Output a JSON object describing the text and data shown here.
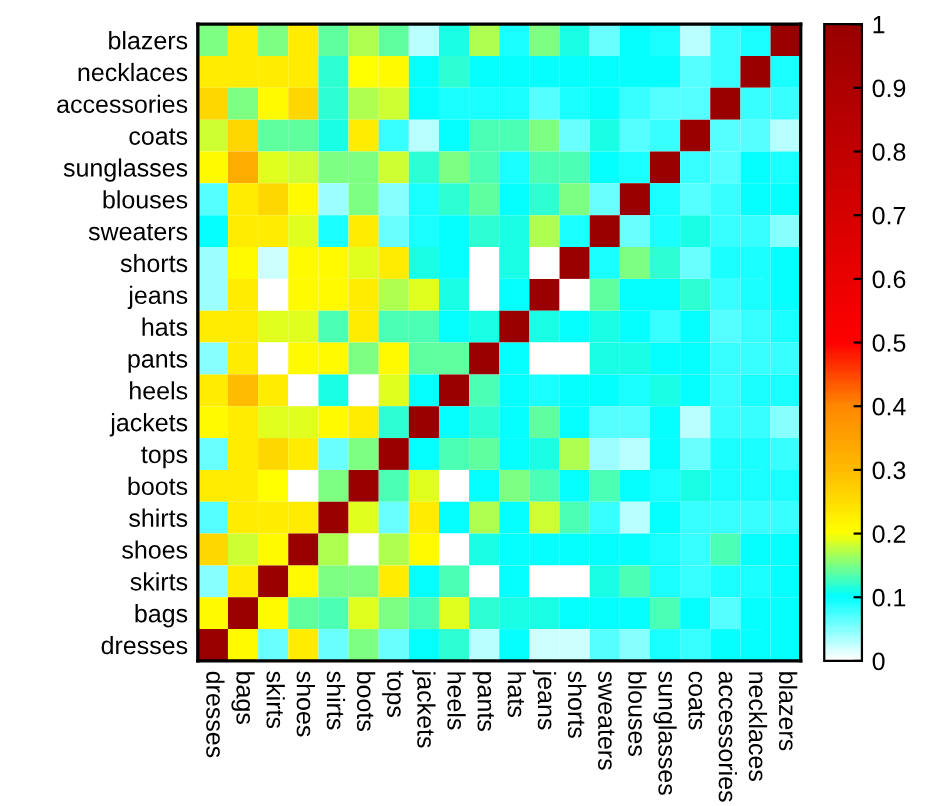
{
  "chart_data": {
    "type": "heatmap",
    "categories": [
      "dresses",
      "bags",
      "skirts",
      "shoes",
      "shirts",
      "boots",
      "tops",
      "jackets",
      "heels",
      "pants",
      "hats",
      "jeans",
      "shorts",
      "sweaters",
      "blouses",
      "sunglasses",
      "coats",
      "accessories",
      "necklaces",
      "blazers"
    ],
    "y_categories": [
      "blazers",
      "necklaces",
      "accessories",
      "coats",
      "sunglasses",
      "blouses",
      "sweaters",
      "shorts",
      "jeans",
      "hats",
      "pants",
      "heels",
      "jackets",
      "tops",
      "boots",
      "shirts",
      "shoes",
      "skirts",
      "bags",
      "dresses"
    ],
    "cells": [
      [
        0.15,
        0.23,
        0.15,
        0.23,
        0.14,
        0.17,
        0.14,
        0.03,
        0.11,
        0.17,
        0.09,
        0.15,
        0.11,
        0.06,
        0.1,
        0.09,
        0.03,
        0.08,
        0.09,
        1
      ],
      [
        0.23,
        0.23,
        0.23,
        0.23,
        0.12,
        0.2,
        0.21,
        0.1,
        0.12,
        0.1,
        0.1,
        0.1,
        0.1,
        0.1,
        0.1,
        0.1,
        0.07,
        0.08,
        1,
        0.09
      ],
      [
        0.26,
        0.15,
        0.21,
        0.26,
        0.12,
        0.17,
        0.18,
        0.1,
        0.09,
        0.09,
        0.09,
        0.07,
        0.09,
        0.1,
        0.08,
        0.07,
        0.07,
        1,
        0.08,
        0.08
      ],
      [
        0.18,
        0.26,
        0.14,
        0.14,
        0.11,
        0.23,
        0.08,
        0.03,
        0.1,
        0.13,
        0.13,
        0.15,
        0.06,
        0.11,
        0.07,
        0.08,
        1,
        0.07,
        0.07,
        0.03
      ],
      [
        0.21,
        0.33,
        0.19,
        0.18,
        0.15,
        0.15,
        0.18,
        0.12,
        0.15,
        0.13,
        0.09,
        0.13,
        0.13,
        0.1,
        0.09,
        1,
        0.08,
        0.07,
        0.1,
        0.09
      ],
      [
        0.07,
        0.23,
        0.26,
        0.21,
        0.04,
        0.15,
        0.05,
        0.09,
        0.12,
        0.14,
        0.1,
        0.12,
        0.15,
        0.06,
        1,
        0.09,
        0.07,
        0.08,
        0.1,
        0.1
      ],
      [
        0.1,
        0.23,
        0.23,
        0.19,
        0.09,
        0.23,
        0.06,
        0.09,
        0.1,
        0.12,
        0.11,
        0.17,
        0.09,
        1,
        0.06,
        0.09,
        0.11,
        0.08,
        0.08,
        0.05
      ],
      [
        0.04,
        0.21,
        0.02,
        0.21,
        0.21,
        0.19,
        0.23,
        0.11,
        0.1,
        0,
        0.11,
        0,
        1,
        0.09,
        0.15,
        0.12,
        0.06,
        0.09,
        0.09,
        0.1
      ],
      [
        0.04,
        0.23,
        0,
        0.21,
        0.21,
        0.23,
        0.17,
        0.19,
        0.11,
        0,
        0.1,
        1,
        0,
        0.14,
        0.1,
        0.1,
        0.12,
        0.08,
        0.09,
        0.1
      ],
      [
        0.23,
        0.23,
        0.19,
        0.19,
        0.13,
        0.23,
        0.13,
        0.13,
        0.1,
        0.11,
        1,
        0.11,
        0.1,
        0.11,
        0.1,
        0.08,
        0.1,
        0.07,
        0.08,
        0.09
      ],
      [
        0.05,
        0.23,
        0,
        0.21,
        0.21,
        0.15,
        0.21,
        0.14,
        0.14,
        1,
        0.1,
        0,
        0,
        0.11,
        0.11,
        0.1,
        0.1,
        0.08,
        0.08,
        0.08
      ],
      [
        0.23,
        0.3,
        0.23,
        0,
        0.11,
        0,
        0.19,
        0.1,
        1,
        0.13,
        0.1,
        0.09,
        0.1,
        0.1,
        0.09,
        0.11,
        0.1,
        0.08,
        0.09,
        0.09
      ],
      [
        0.21,
        0.23,
        0.19,
        0.19,
        0.21,
        0.23,
        0.12,
        1,
        0.1,
        0.12,
        0.1,
        0.14,
        0.1,
        0.07,
        0.07,
        0.1,
        0.03,
        0.08,
        0.08,
        0.05
      ],
      [
        0.06,
        0.23,
        0.26,
        0.23,
        0.06,
        0.15,
        1,
        0.1,
        0.13,
        0.14,
        0.1,
        0.11,
        0.17,
        0.04,
        0.03,
        0.1,
        0.06,
        0.09,
        0.09,
        0.08
      ],
      [
        0.23,
        0.23,
        0.2,
        0,
        0.15,
        1,
        0.13,
        0.19,
        0,
        0.1,
        0.15,
        0.13,
        0.1,
        0.13,
        0.1,
        0.09,
        0.11,
        0.09,
        0.09,
        0.09
      ],
      [
        0.07,
        0.23,
        0.23,
        0.23,
        1,
        0.19,
        0.06,
        0.23,
        0.1,
        0.17,
        0.1,
        0.18,
        0.13,
        0.08,
        0.03,
        0.1,
        0.08,
        0.08,
        0.08,
        0.08
      ],
      [
        0.26,
        0.18,
        0.21,
        1,
        0.17,
        0,
        0.17,
        0.21,
        0,
        0.11,
        0.1,
        0.1,
        0.1,
        0.1,
        0.1,
        0.09,
        0.08,
        0.13,
        0.1,
        0.1
      ],
      [
        0.05,
        0.23,
        1,
        0.21,
        0.15,
        0.15,
        0.23,
        0.1,
        0.13,
        0,
        0.1,
        0,
        0,
        0.11,
        0.13,
        0.09,
        0.08,
        0.09,
        0.09,
        0.1
      ],
      [
        0.21,
        1,
        0.21,
        0.14,
        0.13,
        0.19,
        0.15,
        0.13,
        0.19,
        0.12,
        0.11,
        0.11,
        0.1,
        0.1,
        0.1,
        0.13,
        0.1,
        0.07,
        0.1,
        0.1
      ],
      [
        1,
        0.21,
        0.06,
        0.23,
        0.06,
        0.15,
        0.06,
        0.1,
        0.12,
        0.03,
        0.1,
        0.02,
        0.02,
        0.07,
        0.05,
        0.09,
        0.08,
        0.1,
        0.1,
        0.1
      ]
    ],
    "clim": [
      0,
      1
    ],
    "cticks": [
      0,
      0.1,
      0.2,
      0.3,
      0.4,
      0.5,
      0.6,
      0.7,
      0.8,
      0.9,
      1
    ]
  }
}
